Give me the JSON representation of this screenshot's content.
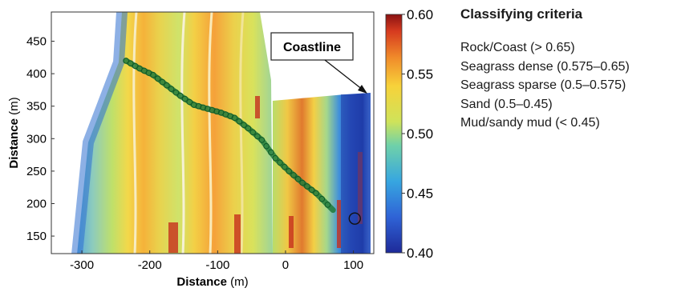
{
  "chart_data": {
    "type": "heatmap",
    "xlabel": "Distance",
    "xlabel_unit": " (m)",
    "ylabel": "Distance",
    "ylabel_unit": " (m)",
    "xlim": [
      -345,
      130
    ],
    "ylim": [
      123,
      495
    ],
    "x_ticks": [
      -300,
      -200,
      -100,
      0,
      100
    ],
    "y_ticks": [
      150,
      200,
      250,
      300,
      350,
      400,
      450
    ],
    "colorbar": {
      "range": [
        0.4,
        0.6
      ],
      "ticks": [
        "0.60",
        "0.55",
        "0.50",
        "0.45",
        "0.40"
      ],
      "colormap": "jet"
    },
    "annotation": "Coastline",
    "track": {
      "color": "#1f7a3a",
      "x": [
        -235,
        -215,
        -195,
        -175,
        -155,
        -135,
        -115,
        -95,
        -75,
        -55,
        -35,
        -15,
        5,
        25,
        45,
        70
      ],
      "y": [
        420,
        408,
        398,
        382,
        366,
        352,
        346,
        340,
        332,
        316,
        298,
        270,
        250,
        232,
        216,
        190
      ]
    },
    "marker": {
      "x": 102,
      "y": 177
    }
  },
  "criteria": {
    "title": "Classifying criteria",
    "items": [
      "Rock/Coast (> 0.65)",
      "Seagrass dense (0.575–0.65)",
      "Seagrass sparse (0.5–0.575)",
      "Sand (0.5–0.45)",
      "Mud/sandy mud (< 0.45)"
    ]
  }
}
